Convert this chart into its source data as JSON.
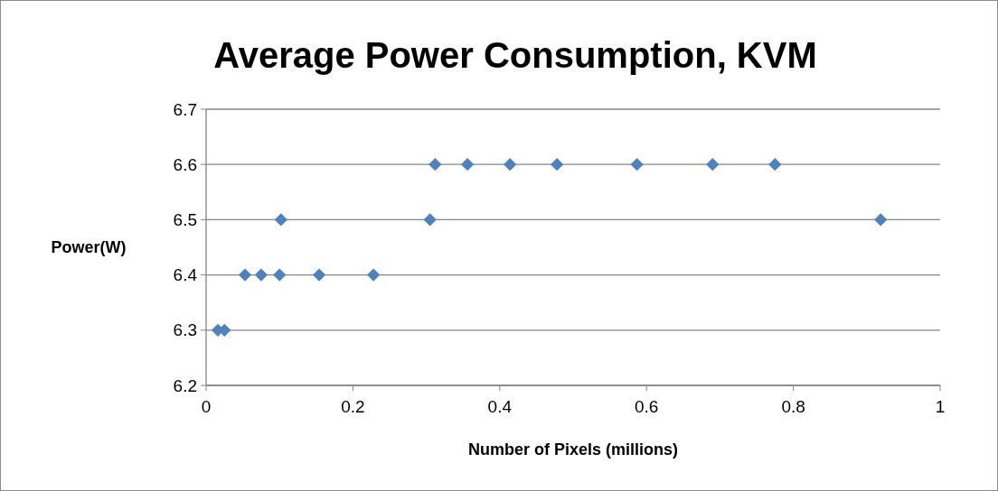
{
  "chart_data": {
    "type": "scatter",
    "title": "Average Power Consumption, KVM",
    "xlabel": "Number of Pixels (millions)",
    "ylabel": "Power(W)",
    "x": [
      0.016,
      0.025,
      0.053,
      0.075,
      0.1,
      0.102,
      0.154,
      0.228,
      0.305,
      0.312,
      0.356,
      0.414,
      0.478,
      0.587,
      0.69,
      0.775,
      0.919
    ],
    "series": [
      {
        "color": "#4f81bd",
        "values": [
          6.3,
          6.3,
          6.4,
          6.4,
          6.4,
          6.5,
          6.4,
          6.4,
          6.5,
          6.6,
          6.6,
          6.6,
          6.6,
          6.6,
          6.6,
          6.6,
          6.5
        ]
      }
    ],
    "xlim": [
      0,
      1
    ],
    "xticks": [
      0,
      0.2,
      0.4,
      0.6,
      0.8,
      1
    ],
    "ylim": [
      6.2,
      6.7
    ],
    "yticks": [
      6.2,
      6.3,
      6.4,
      6.5,
      6.6,
      6.7
    ],
    "grid": "y",
    "marker": "diamond"
  }
}
